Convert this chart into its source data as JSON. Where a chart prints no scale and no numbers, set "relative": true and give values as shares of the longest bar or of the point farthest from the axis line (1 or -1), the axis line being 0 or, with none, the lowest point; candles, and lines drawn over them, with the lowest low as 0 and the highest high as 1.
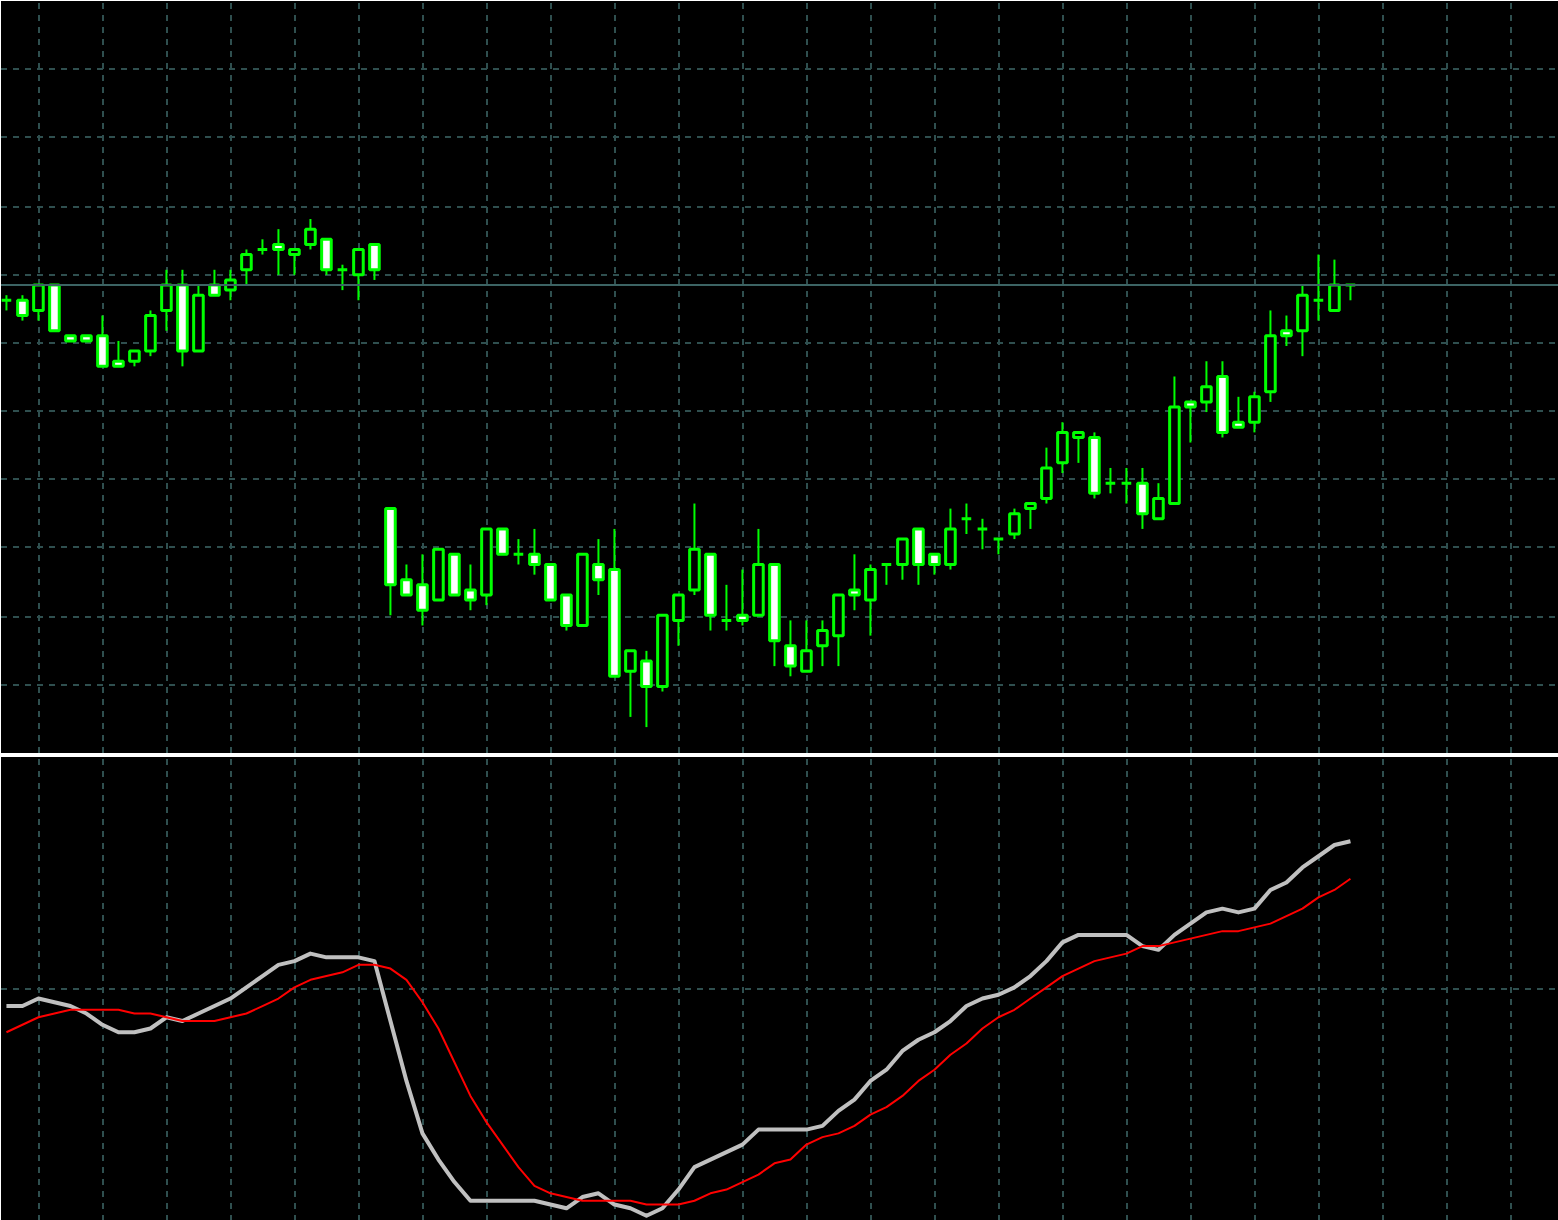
{
  "chart_data": [
    {
      "type": "candlestick",
      "relative": true,
      "grid": true,
      "tick_labels": false,
      "categories": [
        null,
        null,
        null,
        null,
        null,
        null,
        null,
        null,
        null,
        null,
        null,
        null,
        null,
        null,
        null,
        null,
        null,
        null,
        null,
        null,
        null,
        null,
        null,
        null,
        null,
        null,
        null,
        null,
        null,
        null,
        null,
        null,
        null,
        null,
        null,
        null,
        null,
        null,
        null,
        null,
        null,
        null,
        null,
        null,
        null,
        null,
        null,
        null,
        null,
        null,
        null,
        null,
        null,
        null,
        null,
        null,
        null,
        null,
        null,
        null,
        null,
        null,
        null,
        null,
        null,
        null,
        null,
        null,
        null,
        null,
        null,
        null,
        null,
        null,
        null,
        null,
        null,
        null,
        null,
        null,
        null,
        null,
        null,
        null,
        null
      ],
      "ohlc": [
        [
          0.84,
          0.85,
          0.82,
          0.84
        ],
        [
          0.84,
          0.85,
          0.8,
          0.81
        ],
        [
          0.82,
          0.87,
          0.8,
          0.87
        ],
        [
          0.87,
          0.87,
          0.78,
          0.78
        ],
        [
          0.77,
          0.77,
          0.76,
          0.76
        ],
        [
          0.77,
          0.77,
          0.76,
          0.76
        ],
        [
          0.77,
          0.81,
          0.71,
          0.71
        ],
        [
          0.72,
          0.76,
          0.71,
          0.71
        ],
        [
          0.72,
          0.74,
          0.71,
          0.74
        ],
        [
          0.74,
          0.82,
          0.73,
          0.81
        ],
        [
          0.82,
          0.9,
          0.78,
          0.87
        ],
        [
          0.87,
          0.9,
          0.71,
          0.74
        ],
        [
          0.74,
          0.87,
          0.74,
          0.85
        ],
        [
          0.87,
          0.9,
          0.85,
          0.85
        ],
        [
          0.86,
          0.9,
          0.84,
          0.88
        ],
        [
          0.9,
          0.94,
          0.87,
          0.93
        ],
        [
          0.94,
          0.96,
          0.93,
          0.94
        ],
        [
          0.95,
          0.98,
          0.89,
          0.94
        ],
        [
          0.93,
          0.94,
          0.89,
          0.94
        ],
        [
          0.95,
          1,
          0.94,
          0.98
        ],
        [
          0.96,
          0.96,
          0.89,
          0.9
        ],
        [
          0.9,
          0.91,
          0.86,
          0.9
        ],
        [
          0.89,
          0.94,
          0.84,
          0.94
        ],
        [
          0.95,
          0.95,
          0.88,
          0.9
        ],
        [
          0.43,
          0.43,
          0.22,
          0.28
        ],
        [
          0.29,
          0.32,
          0.26,
          0.26
        ],
        [
          0.28,
          0.34,
          0.2,
          0.23
        ],
        [
          0.25,
          0.35,
          0.25,
          0.35
        ],
        [
          0.34,
          0.34,
          0.26,
          0.26
        ],
        [
          0.27,
          0.32,
          0.23,
          0.25
        ],
        [
          0.26,
          0.39,
          0.24,
          0.39
        ],
        [
          0.39,
          0.39,
          0.34,
          0.34
        ],
        [
          0.34,
          0.37,
          0.32,
          0.34
        ],
        [
          0.34,
          0.39,
          0.3,
          0.32
        ],
        [
          0.32,
          0.32,
          0.25,
          0.25
        ],
        [
          0.26,
          0.26,
          0.19,
          0.2
        ],
        [
          0.2,
          0.34,
          0.2,
          0.34
        ],
        [
          0.32,
          0.37,
          0.26,
          0.29
        ],
        [
          0.31,
          0.39,
          0.1,
          0.1
        ],
        [
          0.11,
          0.15,
          0.02,
          0.15
        ],
        [
          0.13,
          0.15,
          0,
          0.08
        ],
        [
          0.08,
          0.22,
          0.07,
          0.22
        ],
        [
          0.21,
          0.26,
          0.16,
          0.26
        ],
        [
          0.27,
          0.44,
          0.26,
          0.35
        ],
        [
          0.34,
          0.34,
          0.19,
          0.22
        ],
        [
          0.21,
          0.28,
          0.19,
          0.21
        ],
        [
          0.22,
          0.31,
          0.2,
          0.21
        ],
        [
          0.22,
          0.39,
          0.22,
          0.32
        ],
        [
          0.32,
          0.32,
          0.12,
          0.17
        ],
        [
          0.16,
          0.21,
          0.1,
          0.12
        ],
        [
          0.11,
          0.21,
          0.11,
          0.15
        ],
        [
          0.16,
          0.21,
          0.12,
          0.19
        ],
        [
          0.18,
          0.26,
          0.12,
          0.26
        ],
        [
          0.27,
          0.34,
          0.23,
          0.26
        ],
        [
          0.25,
          0.32,
          0.18,
          0.31
        ],
        [
          0.32,
          0.32,
          0.28,
          0.32
        ],
        [
          0.32,
          0.37,
          0.29,
          0.37
        ],
        [
          0.39,
          0.39,
          0.28,
          0.32
        ],
        [
          0.34,
          0.34,
          0.3,
          0.32
        ],
        [
          0.32,
          0.43,
          0.31,
          0.39
        ],
        [
          0.41,
          0.44,
          0.38,
          0.41
        ],
        [
          0.39,
          0.41,
          0.35,
          0.39
        ],
        [
          0.37,
          0.37,
          0.34,
          0.37
        ],
        [
          0.38,
          0.43,
          0.37,
          0.42
        ],
        [
          0.43,
          0.44,
          0.39,
          0.44
        ],
        [
          0.45,
          0.55,
          0.44,
          0.51
        ],
        [
          0.52,
          0.6,
          0.5,
          0.58
        ],
        [
          0.57,
          0.58,
          0.52,
          0.58
        ],
        [
          0.57,
          0.58,
          0.45,
          0.46
        ],
        [
          0.48,
          0.51,
          0.46,
          0.48
        ],
        [
          0.48,
          0.51,
          0.44,
          0.48
        ],
        [
          0.48,
          0.51,
          0.39,
          0.42
        ],
        [
          0.41,
          0.48,
          0.41,
          0.45
        ],
        [
          0.44,
          0.69,
          0.44,
          0.63
        ],
        [
          0.64,
          0.64,
          0.56,
          0.63
        ],
        [
          0.64,
          0.72,
          0.62,
          0.67
        ],
        [
          0.69,
          0.72,
          0.57,
          0.58
        ],
        [
          0.6,
          0.65,
          0.59,
          0.59
        ],
        [
          0.6,
          0.66,
          0.58,
          0.65
        ],
        [
          0.66,
          0.82,
          0.64,
          0.77
        ],
        [
          0.78,
          0.81,
          0.75,
          0.77
        ],
        [
          0.78,
          0.87,
          0.73,
          0.85
        ],
        [
          0.84,
          0.93,
          0.8,
          0.84
        ],
        [
          0.82,
          0.92,
          0.82,
          0.87
        ],
        [
          0.87,
          0.87,
          0.84,
          0.87
        ]
      ],
      "ref_lines": [
        {
          "axis": "y",
          "value": 0.87,
          "color": "#3c6464"
        }
      ]
    },
    {
      "type": "line",
      "relative": true,
      "grid": true,
      "tick_labels": false,
      "categories": [
        null,
        null,
        null,
        null,
        null,
        null,
        null,
        null,
        null,
        null,
        null,
        null,
        null,
        null,
        null,
        null,
        null,
        null,
        null,
        null,
        null,
        null,
        null,
        null,
        null,
        null,
        null,
        null,
        null,
        null,
        null,
        null,
        null,
        null,
        null,
        null,
        null,
        null,
        null,
        null,
        null,
        null,
        null,
        null,
        null,
        null,
        null,
        null,
        null,
        null,
        null,
        null,
        null,
        null,
        null,
        null,
        null,
        null,
        null,
        null,
        null,
        null,
        null,
        null,
        null,
        null,
        null,
        null,
        null,
        null,
        null,
        null,
        null,
        null,
        null,
        null,
        null,
        null,
        null,
        null,
        null,
        null,
        null,
        null,
        null
      ],
      "series": [
        {
          "color": "#c0c0c0",
          "values": [
            0.56,
            0.56,
            0.58,
            0.57,
            0.56,
            0.54,
            0.51,
            0.49,
            0.49,
            0.5,
            0.53,
            0.52,
            0.54,
            0.56,
            0.58,
            0.61,
            0.64,
            0.67,
            0.68,
            0.7,
            0.69,
            0.69,
            0.69,
            0.68,
            0.52,
            0.36,
            0.22,
            0.15,
            0.09,
            0.04,
            0.04,
            0.04,
            0.04,
            0.04,
            0.03,
            0.02,
            0.05,
            0.06,
            0.03,
            0.02,
            0,
            0.02,
            0.07,
            0.13,
            0.15,
            0.17,
            0.19,
            0.23,
            0.23,
            0.23,
            0.23,
            0.24,
            0.28,
            0.31,
            0.36,
            0.39,
            0.44,
            0.47,
            0.49,
            0.52,
            0.56,
            0.58,
            0.59,
            0.61,
            0.64,
            0.68,
            0.73,
            0.75,
            0.75,
            0.75,
            0.75,
            0.72,
            0.71,
            0.75,
            0.78,
            0.81,
            0.82,
            0.81,
            0.82,
            0.87,
            0.89,
            0.93,
            0.96,
            0.99,
            1
          ]
        },
        {
          "color": "#ff0000",
          "values": [
            0.49,
            0.51,
            0.53,
            0.54,
            0.55,
            0.55,
            0.55,
            0.55,
            0.54,
            0.54,
            0.53,
            0.52,
            0.52,
            0.52,
            0.53,
            0.54,
            0.56,
            0.58,
            0.61,
            0.63,
            0.64,
            0.65,
            0.67,
            0.67,
            0.66,
            0.63,
            0.57,
            0.5,
            0.41,
            0.32,
            0.25,
            0.19,
            0.13,
            0.08,
            0.06,
            0.05,
            0.04,
            0.04,
            0.04,
            0.04,
            0.03,
            0.03,
            0.03,
            0.04,
            0.06,
            0.07,
            0.09,
            0.11,
            0.14,
            0.15,
            0.19,
            0.21,
            0.22,
            0.24,
            0.27,
            0.29,
            0.32,
            0.36,
            0.39,
            0.43,
            0.46,
            0.5,
            0.53,
            0.55,
            0.58,
            0.61,
            0.64,
            0.66,
            0.68,
            0.69,
            0.7,
            0.72,
            0.72,
            0.73,
            0.74,
            0.75,
            0.76,
            0.76,
            0.77,
            0.78,
            0.8,
            0.82,
            0.85,
            0.87,
            0.9
          ]
        }
      ]
    }
  ]
}
